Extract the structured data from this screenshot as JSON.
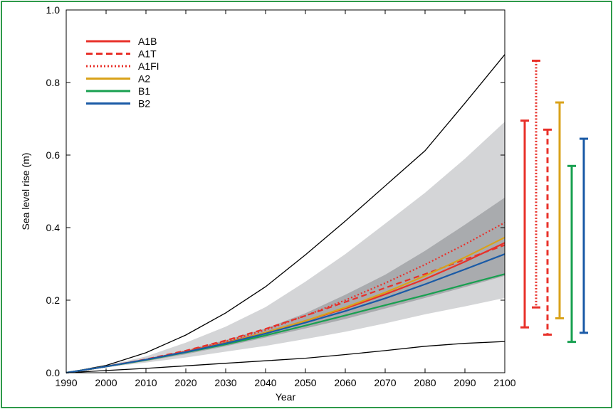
{
  "chart_data": {
    "type": "line",
    "xlabel": "Year",
    "ylabel": "Sea level rise (m)",
    "xlim": [
      1990,
      2100
    ],
    "ylim": [
      0,
      1.0
    ],
    "x_ticks": [
      "1990",
      "2000",
      "2010",
      "2020",
      "2030",
      "2040",
      "2050",
      "2060",
      "2070",
      "2080",
      "2090",
      "2100"
    ],
    "y_ticks": [
      "0.0",
      "0.2",
      "0.4",
      "0.6",
      "0.8",
      "1.0"
    ],
    "x": [
      1990,
      2000,
      2010,
      2020,
      2030,
      2040,
      2050,
      2060,
      2070,
      2080,
      2090,
      2100
    ],
    "series": [
      {
        "name": "A1B",
        "color": "#e8312a",
        "dash": "solid",
        "values": [
          0.0,
          0.017,
          0.036,
          0.058,
          0.083,
          0.111,
          0.143,
          0.177,
          0.216,
          0.258,
          0.306,
          0.358
        ]
      },
      {
        "name": "A1T",
        "color": "#e8312a",
        "dash": "dashed",
        "values": [
          0.0,
          0.017,
          0.037,
          0.061,
          0.089,
          0.121,
          0.157,
          0.195,
          0.234,
          0.272,
          0.312,
          0.352
        ]
      },
      {
        "name": "A1FI",
        "color": "#e8312a",
        "dash": "dotted",
        "values": [
          0.0,
          0.017,
          0.036,
          0.059,
          0.086,
          0.118,
          0.157,
          0.2,
          0.247,
          0.298,
          0.354,
          0.414
        ]
      },
      {
        "name": "A2",
        "color": "#d9a21a",
        "dash": "solid",
        "values": [
          0.0,
          0.017,
          0.035,
          0.057,
          0.082,
          0.111,
          0.143,
          0.18,
          0.221,
          0.267,
          0.318,
          0.373
        ]
      },
      {
        "name": "B1",
        "color": "#18a050",
        "dash": "solid",
        "values": [
          0.0,
          0.017,
          0.035,
          0.056,
          0.078,
          0.103,
          0.13,
          0.158,
          0.186,
          0.214,
          0.243,
          0.272
        ]
      },
      {
        "name": "B2",
        "color": "#1a5aa6",
        "dash": "solid",
        "values": [
          0.0,
          0.017,
          0.036,
          0.057,
          0.081,
          0.108,
          0.138,
          0.17,
          0.205,
          0.244,
          0.285,
          0.327
        ]
      }
    ],
    "bounds": {
      "upper": [
        0.0,
        0.02,
        0.055,
        0.104,
        0.165,
        0.237,
        0.325,
        0.418,
        0.515,
        0.612,
        0.743,
        0.877
      ],
      "lower": [
        0.0,
        0.006,
        0.012,
        0.019,
        0.026,
        0.033,
        0.04,
        0.05,
        0.061,
        0.073,
        0.081,
        0.086
      ]
    },
    "outer_band": {
      "upper": [
        0.0,
        0.02,
        0.045,
        0.083,
        0.127,
        0.181,
        0.251,
        0.327,
        0.411,
        0.496,
        0.59,
        0.692
      ],
      "lower": [
        0.0,
        0.015,
        0.028,
        0.042,
        0.058,
        0.074,
        0.093,
        0.113,
        0.136,
        0.161,
        0.183,
        0.206
      ]
    },
    "inner_band": {
      "upper": [
        0.0,
        0.018,
        0.038,
        0.062,
        0.09,
        0.122,
        0.164,
        0.215,
        0.27,
        0.336,
        0.408,
        0.483
      ],
      "lower": [
        0.0,
        0.016,
        0.032,
        0.051,
        0.073,
        0.097,
        0.122,
        0.148,
        0.177,
        0.206,
        0.236,
        0.267
      ]
    },
    "range_bars": [
      {
        "name": "A1B",
        "color": "#e8312a",
        "dash": "solid",
        "low": 0.125,
        "high": 0.695
      },
      {
        "name": "A1FI",
        "color": "#e8312a",
        "dash": "dotted",
        "low": 0.18,
        "high": 0.86
      },
      {
        "name": "A1T",
        "color": "#e8312a",
        "dash": "dashed",
        "low": 0.105,
        "high": 0.67
      },
      {
        "name": "A2",
        "color": "#d9a21a",
        "dash": "solid",
        "low": 0.15,
        "high": 0.745
      },
      {
        "name": "B1",
        "color": "#18a050",
        "dash": "solid",
        "low": 0.085,
        "high": 0.57
      },
      {
        "name": "B2",
        "color": "#1a5aa6",
        "dash": "solid",
        "low": 0.11,
        "high": 0.645
      }
    ],
    "band_colors": {
      "outer": "#d4d5d7",
      "inner": "#a9abae"
    },
    "legend_position": "top-left",
    "grid": false
  }
}
